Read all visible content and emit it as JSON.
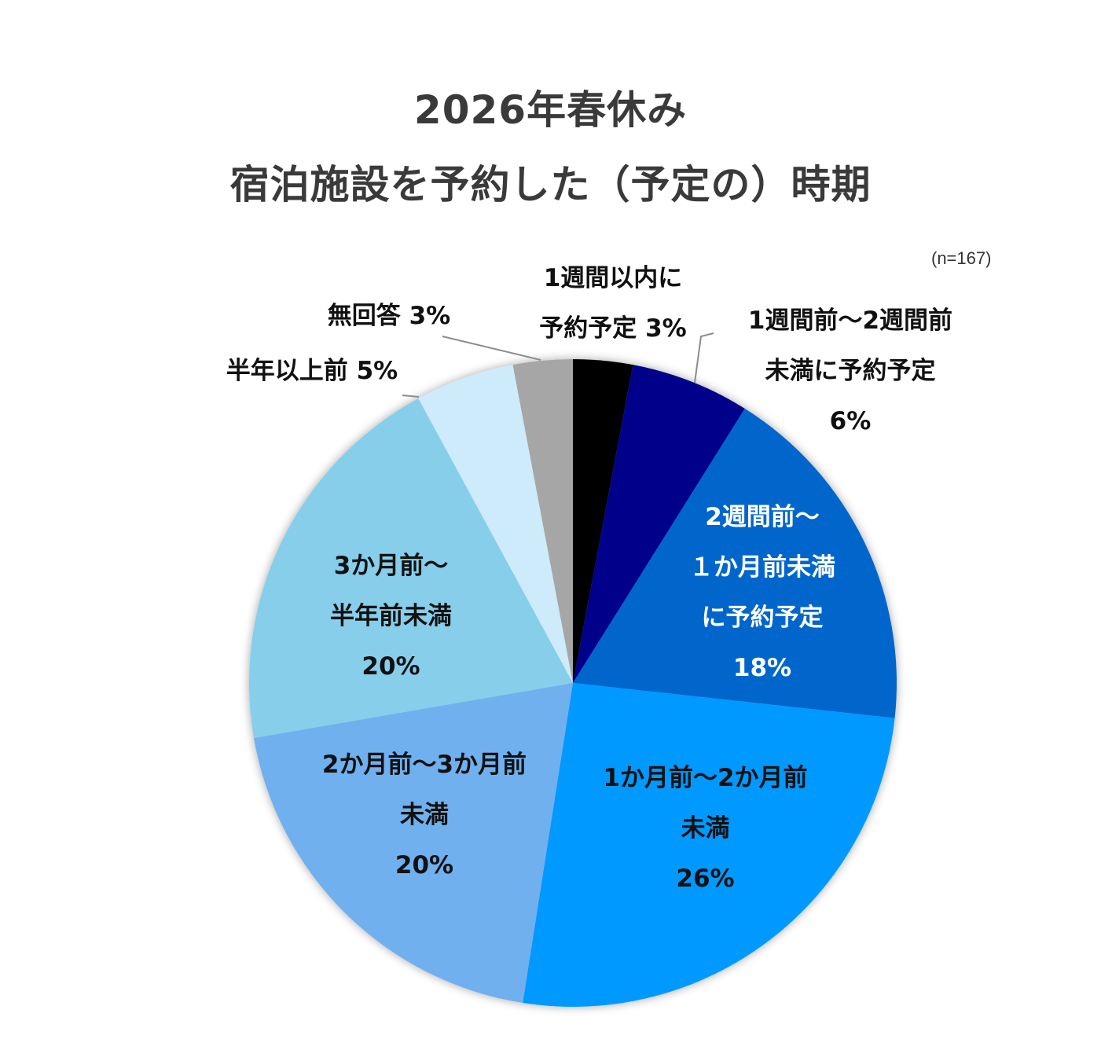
{
  "title": {
    "line1": "2026年春休み",
    "line2": "宿泊施設を予約した（予定の）時期"
  },
  "sample_note": "(n=167)",
  "labels": {
    "s0": {
      "l1": "1週間以内に",
      "l2": "予約予定 3%"
    },
    "s1": {
      "l1": "1週間前～2週間前",
      "l2": "未満に予約予定",
      "l3": "6%"
    },
    "s2": {
      "l1": "2週間前～",
      "l2": "１か月前未満",
      "l3": "に予約予定",
      "l4": "18%"
    },
    "s3": {
      "l1": "1か月前～2か月前",
      "l2": "未満",
      "l3": "26%"
    },
    "s4": {
      "l1": "2か月前～3か月前",
      "l2": "未満",
      "l3": "20%"
    },
    "s5": {
      "l1": "3か月前～",
      "l2": "半年前未満",
      "l3": "20%"
    },
    "s6": {
      "l1": "半年以上前 5%"
    },
    "s7": {
      "l1": "無回答 3%"
    }
  },
  "chart_data": {
    "type": "pie",
    "title": "2026年春休み 宿泊施設を予約した（予定の）時期",
    "subtitle": "(n=167)",
    "categories": [
      "1週間以内に予約予定",
      "1週間前～2週間前未満に予約予定",
      "2週間前～１か月前未満に予約予定",
      "1か月前～2か月前未満",
      "2か月前～3か月前未満",
      "3か月前～半年前未満",
      "半年以上前",
      "無回答"
    ],
    "values": [
      3,
      6,
      18,
      26,
      20,
      20,
      5,
      3
    ],
    "unit": "%",
    "colors": [
      "#000000",
      "#00008b",
      "#0066cc",
      "#0099ff",
      "#6fb0ee",
      "#87ceeb",
      "#cdebfa",
      "#a6a6a6"
    ],
    "start_angle": "12 o'clock, clockwise",
    "legend": "none (data labels)"
  }
}
